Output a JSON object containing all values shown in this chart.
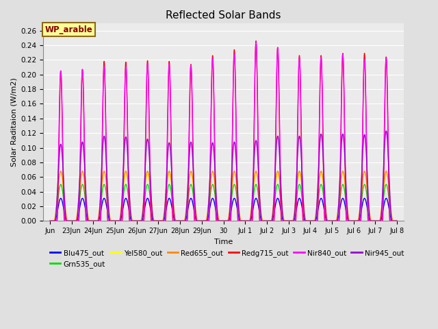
{
  "title": "Reflected Solar Bands",
  "xlabel": "Time",
  "ylabel": "Solar Raditaion (W/m2)",
  "annotation": "WP_arable",
  "annotation_color": "#8B0000",
  "annotation_bg": "#FFFF99",
  "annotation_border": "#8B6914",
  "ylim": [
    0.0,
    0.27
  ],
  "yticks": [
    0.0,
    0.02,
    0.04,
    0.06,
    0.08,
    0.1,
    0.12,
    0.14,
    0.16,
    0.18,
    0.2,
    0.22,
    0.24,
    0.26
  ],
  "background_color": "#e0e0e0",
  "plot_bg": "#ebebeb",
  "grid_color": "#ffffff",
  "series": [
    {
      "name": "Blu475_out",
      "color": "#0000FF",
      "lw": 1.0
    },
    {
      "name": "Grn535_out",
      "color": "#00DD00",
      "lw": 1.0
    },
    {
      "name": "Yel580_out",
      "color": "#FFFF00",
      "lw": 1.0
    },
    {
      "name": "Red655_out",
      "color": "#FF8800",
      "lw": 1.0
    },
    {
      "name": "Redg715_out",
      "color": "#FF0000",
      "lw": 1.0
    },
    {
      "name": "Nir840_out",
      "color": "#FF00FF",
      "lw": 1.0
    },
    {
      "name": "Nir945_out",
      "color": "#9900CC",
      "lw": 1.0
    }
  ],
  "xtick_labels": [
    "Jun",
    "23Jun",
    "24Jun",
    "25Jun",
    "26Jun",
    "27Jun",
    "28Jun",
    "29Jun",
    "30",
    "Jul 1",
    "Jul 2",
    "Jul 3",
    "Jul 4",
    "Jul 5",
    "Jul 6",
    "Jul 7",
    "Jul 8"
  ],
  "n_days": 16,
  "points_per_day": 200,
  "peaks_by_day": {
    "Blu475_out": [
      0.031,
      0.031,
      0.031,
      0.031,
      0.031,
      0.031,
      0.031,
      0.031,
      0.031,
      0.031,
      0.031,
      0.031,
      0.031,
      0.031,
      0.031,
      0.031
    ],
    "Grn535_out": [
      0.05,
      0.05,
      0.05,
      0.05,
      0.05,
      0.05,
      0.05,
      0.05,
      0.05,
      0.05,
      0.05,
      0.05,
      0.05,
      0.05,
      0.05,
      0.05
    ],
    "Yel580_out": [
      0.065,
      0.065,
      0.065,
      0.065,
      0.065,
      0.065,
      0.065,
      0.065,
      0.065,
      0.065,
      0.065,
      0.065,
      0.065,
      0.065,
      0.065,
      0.065
    ],
    "Red655_out": [
      0.068,
      0.068,
      0.068,
      0.068,
      0.068,
      0.068,
      0.068,
      0.068,
      0.068,
      0.068,
      0.068,
      0.068,
      0.068,
      0.068,
      0.068,
      0.068
    ],
    "Redg715_out": [
      0.205,
      0.207,
      0.218,
      0.217,
      0.219,
      0.218,
      0.214,
      0.226,
      0.234,
      0.246,
      0.237,
      0.226,
      0.226,
      0.229,
      0.229,
      0.224
    ],
    "Nir840_out": [
      0.205,
      0.207,
      0.211,
      0.211,
      0.215,
      0.214,
      0.213,
      0.222,
      0.228,
      0.244,
      0.237,
      0.224,
      0.224,
      0.228,
      0.221,
      0.223
    ],
    "Nir945_out": [
      0.105,
      0.108,
      0.116,
      0.115,
      0.112,
      0.107,
      0.108,
      0.107,
      0.108,
      0.11,
      0.116,
      0.116,
      0.119,
      0.119,
      0.118,
      0.123
    ]
  },
  "widths": {
    "Blu475_out": 0.28,
    "Grn535_out": 0.3,
    "Yel580_out": 0.31,
    "Red655_out": 0.32,
    "Redg715_out": 0.17,
    "Nir840_out": 0.19,
    "Nir945_out": 0.27
  }
}
